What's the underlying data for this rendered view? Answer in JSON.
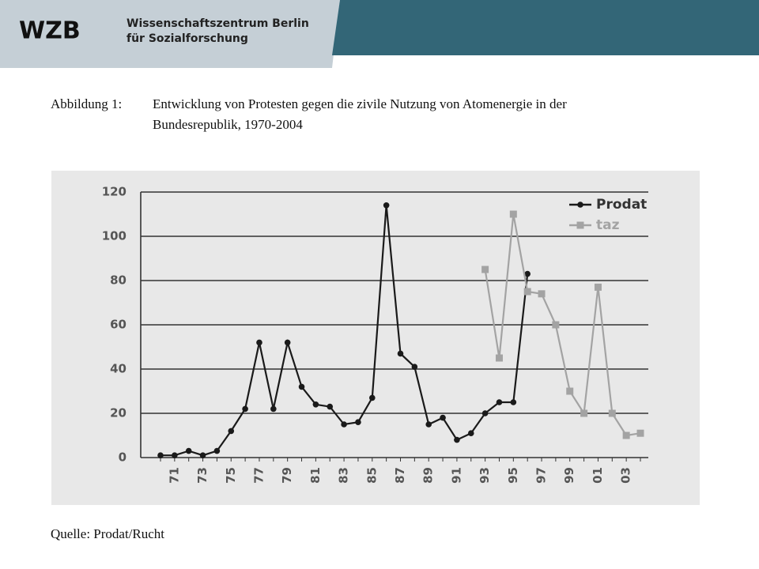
{
  "header": {
    "logo": "WZB",
    "org_line1": "Wissenschaftszentrum Berlin",
    "org_line2": "für Sozialforschung"
  },
  "caption": {
    "label": "Abbildung 1:",
    "lines": [
      "Entwicklung von Protesten gegen die zivile Nutzung von Atomenergie in der",
      "Bundesrepublik, 1970-2004"
    ]
  },
  "chart_data": {
    "type": "line",
    "categories": [
      null,
      "71",
      null,
      "73",
      null,
      "75",
      null,
      "77",
      null,
      "79",
      null,
      "81",
      null,
      "83",
      null,
      "85",
      null,
      "87",
      null,
      "89",
      null,
      "91",
      null,
      "93",
      null,
      "95",
      null,
      "97",
      null,
      "99",
      null,
      "01",
      null,
      "03",
      null
    ],
    "series": [
      {
        "name": "Prodat",
        "color": "#1a1a1a",
        "marker": "circle",
        "values": [
          1,
          1,
          3,
          1,
          3,
          12,
          22,
          52,
          22,
          52,
          32,
          24,
          23,
          15,
          16,
          27,
          114,
          47,
          41,
          15,
          18,
          8,
          11,
          20,
          25,
          25,
          83,
          null,
          null,
          null,
          null,
          null,
          null,
          null,
          null
        ]
      },
      {
        "name": "taz",
        "color": "#a3a3a3",
        "marker": "square",
        "values": [
          null,
          null,
          null,
          null,
          null,
          null,
          null,
          null,
          null,
          null,
          null,
          null,
          null,
          null,
          null,
          null,
          null,
          null,
          null,
          null,
          null,
          null,
          null,
          85,
          45,
          110,
          75,
          74,
          60,
          30,
          20,
          77,
          20,
          10,
          11
        ]
      }
    ],
    "ylim": [
      0,
      120
    ],
    "yticks": [
      0,
      20,
      40,
      60,
      80,
      100,
      120
    ],
    "grid": true,
    "legend": "upper right"
  },
  "source": "Quelle: Prodat/Rucht"
}
